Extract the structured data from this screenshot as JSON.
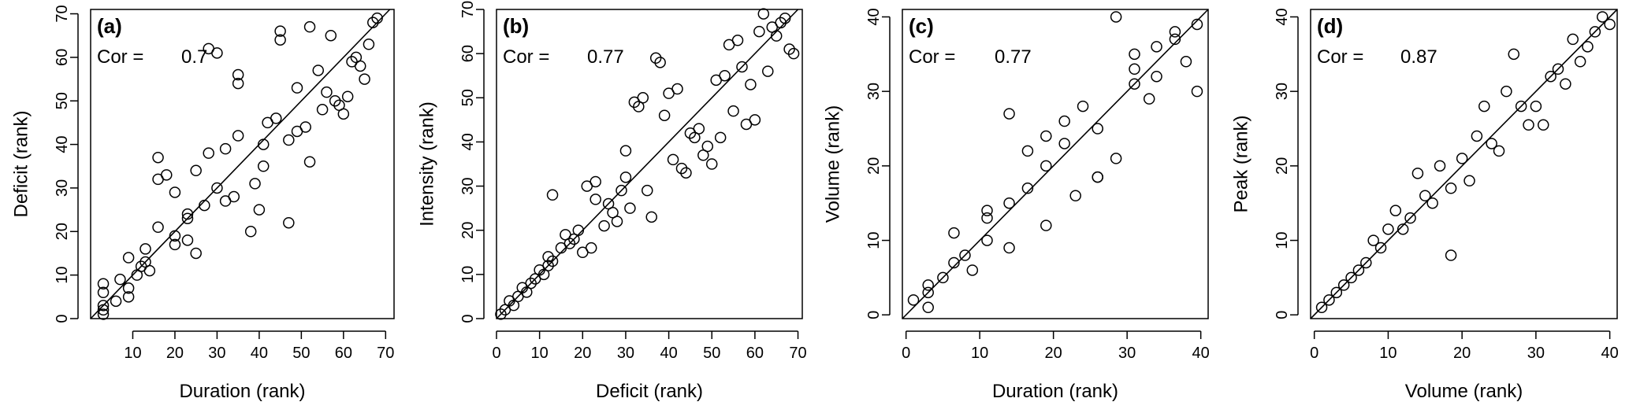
{
  "chart_data": [
    {
      "type": "scatter",
      "panel_label": "(a)",
      "cor_label": "Cor =",
      "cor_value": "0.7",
      "xlabel": "Duration (rank)",
      "ylabel": "Deficit (rank)",
      "xlim": [
        0,
        72
      ],
      "ylim": [
        0,
        71
      ],
      "xticks": [
        10,
        20,
        30,
        40,
        50,
        60,
        70
      ],
      "yticks": [
        0,
        10,
        20,
        30,
        40,
        50,
        60,
        70
      ],
      "reference_line": "y = x",
      "points": [
        [
          3,
          1
        ],
        [
          3,
          2
        ],
        [
          3,
          3
        ],
        [
          3,
          6
        ],
        [
          3,
          8
        ],
        [
          6,
          4
        ],
        [
          7,
          9
        ],
        [
          9,
          5
        ],
        [
          9,
          7
        ],
        [
          9,
          14
        ],
        [
          11,
          10
        ],
        [
          12,
          12
        ],
        [
          13,
          13
        ],
        [
          13,
          16
        ],
        [
          14,
          11
        ],
        [
          16,
          21
        ],
        [
          16,
          32
        ],
        [
          16,
          37
        ],
        [
          18,
          33
        ],
        [
          20,
          29
        ],
        [
          20,
          17
        ],
        [
          20,
          19
        ],
        [
          23,
          18
        ],
        [
          23,
          23
        ],
        [
          23,
          24
        ],
        [
          25,
          15
        ],
        [
          25,
          34
        ],
        [
          27,
          26
        ],
        [
          28,
          38
        ],
        [
          28,
          62
        ],
        [
          30,
          30
        ],
        [
          30,
          61
        ],
        [
          32,
          27
        ],
        [
          32,
          39
        ],
        [
          34,
          28
        ],
        [
          35,
          42
        ],
        [
          35,
          54
        ],
        [
          35,
          56
        ],
        [
          38,
          20
        ],
        [
          39,
          31
        ],
        [
          40,
          25
        ],
        [
          41,
          35
        ],
        [
          41,
          40
        ],
        [
          42,
          45
        ],
        [
          44,
          46
        ],
        [
          45,
          64
        ],
        [
          45,
          66
        ],
        [
          47,
          22
        ],
        [
          47,
          41
        ],
        [
          49,
          43
        ],
        [
          49,
          53
        ],
        [
          51,
          44
        ],
        [
          52,
          36
        ],
        [
          52,
          67
        ],
        [
          54,
          57
        ],
        [
          55,
          48
        ],
        [
          56,
          52
        ],
        [
          57,
          65
        ],
        [
          58,
          50
        ],
        [
          59,
          49
        ],
        [
          60,
          47
        ],
        [
          61,
          51
        ],
        [
          62,
          59
        ],
        [
          63,
          60
        ],
        [
          64,
          58
        ],
        [
          65,
          55
        ],
        [
          66,
          63
        ],
        [
          67,
          68
        ],
        [
          68,
          69
        ]
      ]
    },
    {
      "type": "scatter",
      "panel_label": "(b)",
      "cor_label": "Cor =",
      "cor_value": "0.77",
      "xlabel": "Deficit (rank)",
      "ylabel": "Intensity (rank)",
      "xlim": [
        0,
        71
      ],
      "ylim": [
        0,
        70
      ],
      "xticks": [
        0,
        10,
        20,
        30,
        40,
        50,
        60,
        70
      ],
      "yticks": [
        0,
        10,
        20,
        30,
        40,
        50,
        60,
        70
      ],
      "reference_line": "y = x",
      "points": [
        [
          1,
          1
        ],
        [
          2,
          2
        ],
        [
          3,
          4
        ],
        [
          4,
          3
        ],
        [
          5,
          5
        ],
        [
          6,
          7
        ],
        [
          7,
          6
        ],
        [
          8,
          8
        ],
        [
          9,
          9
        ],
        [
          10,
          11
        ],
        [
          11,
          10
        ],
        [
          12,
          12
        ],
        [
          12,
          14
        ],
        [
          13,
          13
        ],
        [
          13,
          28
        ],
        [
          15,
          16
        ],
        [
          16,
          19
        ],
        [
          17,
          17
        ],
        [
          18,
          18
        ],
        [
          19,
          20
        ],
        [
          20,
          15
        ],
        [
          21,
          30
        ],
        [
          22,
          16
        ],
        [
          23,
          27
        ],
        [
          23,
          31
        ],
        [
          25,
          21
        ],
        [
          26,
          26
        ],
        [
          27,
          24
        ],
        [
          28,
          22
        ],
        [
          29,
          29
        ],
        [
          30,
          38
        ],
        [
          30,
          32
        ],
        [
          31,
          25
        ],
        [
          32,
          49
        ],
        [
          33,
          48
        ],
        [
          34,
          50
        ],
        [
          35,
          29
        ],
        [
          36,
          23
        ],
        [
          37,
          59
        ],
        [
          38,
          58
        ],
        [
          39,
          46
        ],
        [
          40,
          51
        ],
        [
          41,
          36
        ],
        [
          42,
          52
        ],
        [
          43,
          34
        ],
        [
          44,
          33
        ],
        [
          45,
          42
        ],
        [
          46,
          41
        ],
        [
          47,
          43
        ],
        [
          48,
          37
        ],
        [
          49,
          39
        ],
        [
          50,
          35
        ],
        [
          51,
          54
        ],
        [
          52,
          41
        ],
        [
          53,
          55
        ],
        [
          54,
          62
        ],
        [
          55,
          47
        ],
        [
          56,
          63
        ],
        [
          57,
          57
        ],
        [
          58,
          44
        ],
        [
          59,
          53
        ],
        [
          60,
          45
        ],
        [
          61,
          65
        ],
        [
          62,
          69
        ],
        [
          63,
          56
        ],
        [
          64,
          66
        ],
        [
          65,
          64
        ],
        [
          66,
          67
        ],
        [
          67,
          68
        ],
        [
          68,
          61
        ],
        [
          69,
          60
        ]
      ]
    },
    {
      "type": "scatter",
      "panel_label": "(c)",
      "cor_label": "Cor =",
      "cor_value": "0.77",
      "xlabel": "Duration (rank)",
      "ylabel": "Volume (rank)",
      "xlim": [
        -0.5,
        41
      ],
      "ylim": [
        -0.5,
        41
      ],
      "xticks": [
        0,
        10,
        20,
        30,
        40
      ],
      "yticks": [
        0,
        10,
        20,
        30,
        40
      ],
      "reference_line": "y = x",
      "points": [
        [
          1,
          2
        ],
        [
          3,
          1
        ],
        [
          3,
          3
        ],
        [
          3,
          4
        ],
        [
          5,
          5
        ],
        [
          6.5,
          7
        ],
        [
          6.5,
          11
        ],
        [
          8,
          8
        ],
        [
          9,
          6
        ],
        [
          11,
          10
        ],
        [
          11,
          13
        ],
        [
          11,
          14
        ],
        [
          14,
          9
        ],
        [
          14,
          15
        ],
        [
          14,
          27
        ],
        [
          16.5,
          17
        ],
        [
          16.5,
          22
        ],
        [
          19,
          12
        ],
        [
          19,
          20
        ],
        [
          19,
          24
        ],
        [
          21.5,
          23
        ],
        [
          21.5,
          26
        ],
        [
          23,
          16
        ],
        [
          24,
          28
        ],
        [
          26,
          18.5
        ],
        [
          26,
          18.5
        ],
        [
          26,
          25
        ],
        [
          28.5,
          21
        ],
        [
          28.5,
          40
        ],
        [
          31,
          31
        ],
        [
          31,
          33
        ],
        [
          31,
          35
        ],
        [
          33,
          29
        ],
        [
          34,
          32
        ],
        [
          34,
          36
        ],
        [
          36.5,
          37
        ],
        [
          36.5,
          38
        ],
        [
          38,
          34
        ],
        [
          39.5,
          30
        ],
        [
          39.5,
          39
        ]
      ]
    },
    {
      "type": "scatter",
      "panel_label": "(d)",
      "cor_label": "Cor =",
      "cor_value": "0.87",
      "xlabel": "Volume (rank)",
      "ylabel": "Peak (rank)",
      "xlim": [
        -0.5,
        41
      ],
      "ylim": [
        -0.5,
        41
      ],
      "xticks": [
        0,
        10,
        20,
        30,
        40
      ],
      "yticks": [
        0,
        10,
        20,
        30,
        40
      ],
      "reference_line": "y = x",
      "points": [
        [
          1,
          1
        ],
        [
          2,
          2
        ],
        [
          3,
          3
        ],
        [
          4,
          4
        ],
        [
          5,
          5
        ],
        [
          6,
          6
        ],
        [
          7,
          7
        ],
        [
          8,
          10
        ],
        [
          9,
          9
        ],
        [
          10,
          11.5
        ],
        [
          11,
          14
        ],
        [
          12,
          11.5
        ],
        [
          13,
          13
        ],
        [
          14,
          19
        ],
        [
          15,
          16
        ],
        [
          16,
          15
        ],
        [
          17,
          20
        ],
        [
          18.5,
          17
        ],
        [
          18.5,
          8
        ],
        [
          20,
          21
        ],
        [
          21,
          18
        ],
        [
          22,
          24
        ],
        [
          23,
          28
        ],
        [
          24,
          23
        ],
        [
          25,
          22
        ],
        [
          26,
          30
        ],
        [
          27,
          35
        ],
        [
          28,
          28
        ],
        [
          29,
          25.5
        ],
        [
          30,
          28
        ],
        [
          31,
          25.5
        ],
        [
          32,
          32
        ],
        [
          33,
          33
        ],
        [
          34,
          31
        ],
        [
          35,
          37
        ],
        [
          36,
          34
        ],
        [
          37,
          36
        ],
        [
          38,
          38
        ],
        [
          39,
          40
        ],
        [
          40,
          39
        ]
      ]
    }
  ]
}
